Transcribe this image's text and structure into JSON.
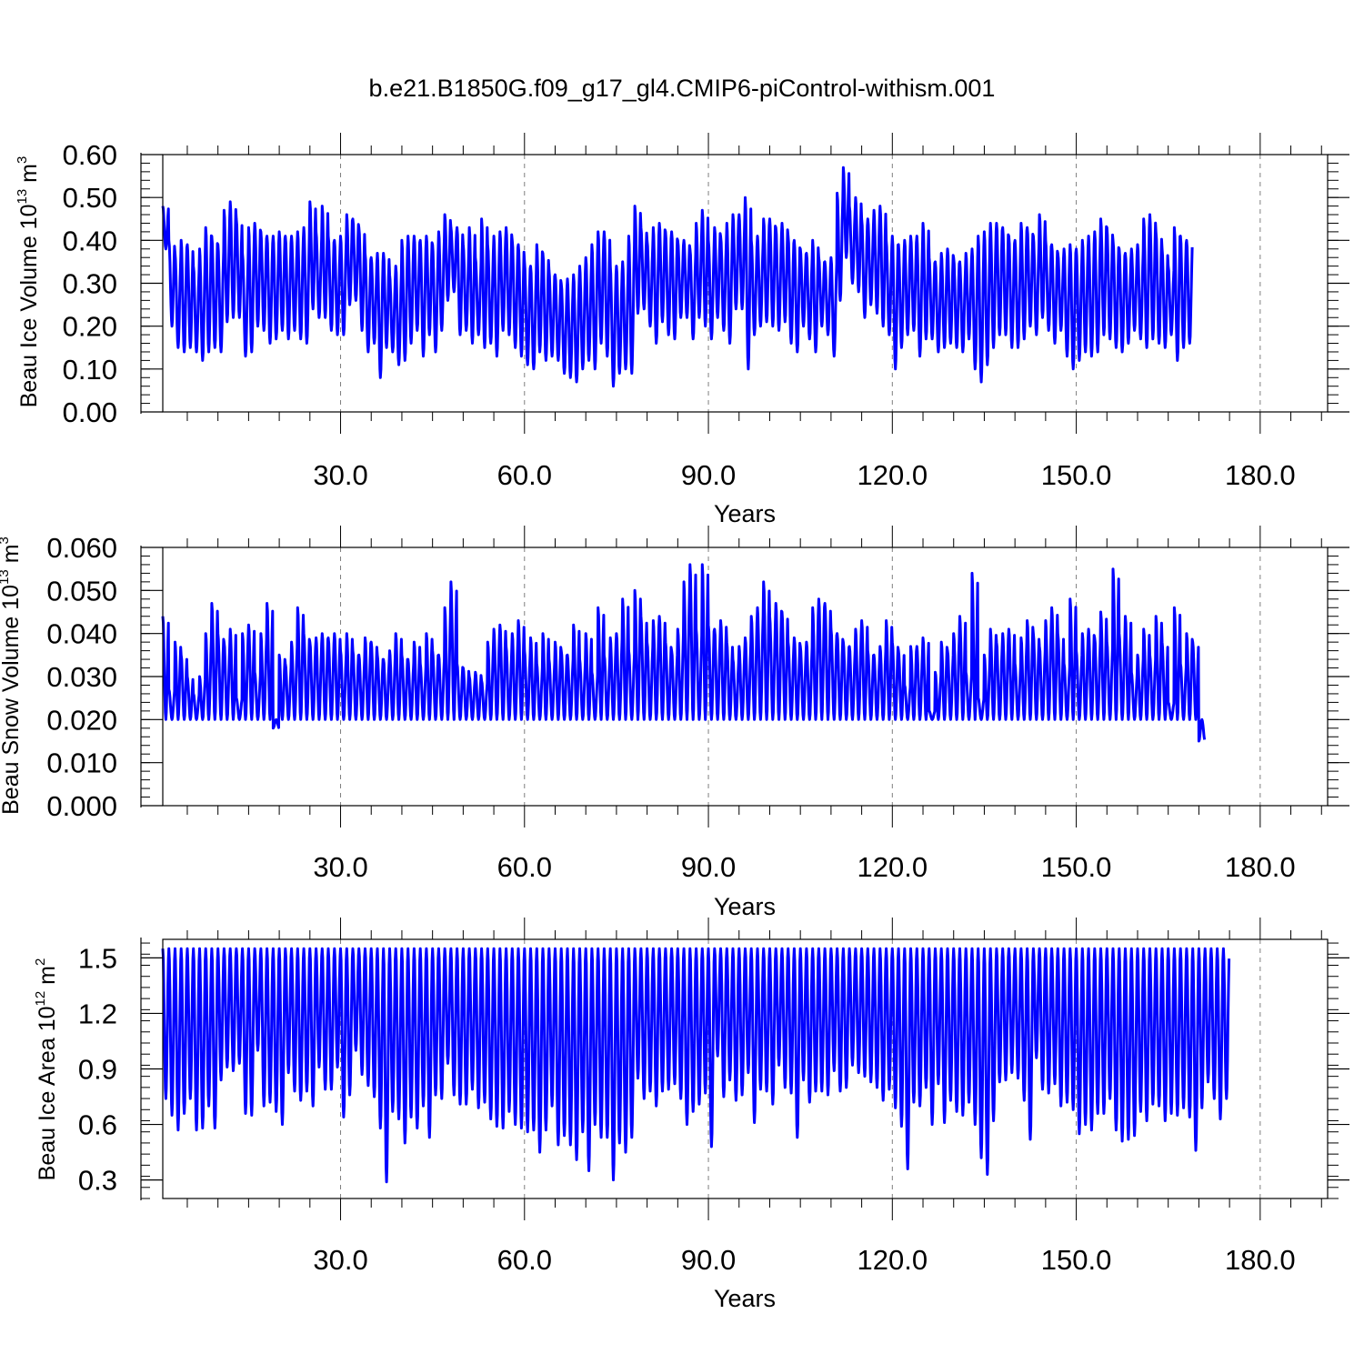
{
  "figure": {
    "title": "b.e21.B1850G.f09_g17_gl4.CMIP6-piControl-withism.001"
  },
  "colors": {
    "series": "#0000ff",
    "axis": "#000000",
    "grid": "#7f7f7f"
  },
  "chart_data": [
    {
      "type": "line",
      "ylabel": {
        "prefix": "Beau Ice Volume 10",
        "exp": "13",
        "unit": " m",
        "unit_exp": "3"
      },
      "xlabel": "Years",
      "xlim": [
        1,
        191
      ],
      "ylim": [
        0,
        0.6
      ],
      "yticks": [
        0,
        0.1,
        0.2,
        0.3,
        0.4,
        0.5,
        0.6
      ],
      "ytick_labels": [
        "0.00",
        "0.10",
        "0.20",
        "0.30",
        "0.40",
        "0.50",
        "0.60"
      ],
      "xticks": [
        30,
        60,
        90,
        120,
        150,
        180
      ],
      "xtick_labels": [
        "30.0",
        "60.0",
        "90.0",
        "120.0",
        "150.0",
        "180.0"
      ],
      "grid": "vertical dashed at major x ticks",
      "series": [
        {
          "annual_max": [
            0.48,
            0.4,
            0.37,
            0.4,
            0.39,
            0.34,
            0.38,
            0.43,
            0.41,
            0.39,
            0.47,
            0.49,
            0.45,
            0.37,
            0.43,
            0.44,
            0.42,
            0.41,
            0.41,
            0.42,
            0.41,
            0.41,
            0.42,
            0.43,
            0.49,
            0.42,
            0.48,
            0.41,
            0.4,
            0.41,
            0.46,
            0.45,
            0.43,
            0.37,
            0.36,
            0.37,
            0.37,
            0.32,
            0.34,
            0.4,
            0.41,
            0.41,
            0.4,
            0.41,
            0.39,
            0.42,
            0.46,
            0.43,
            0.43,
            0.39,
            0.43,
            0.36,
            0.45,
            0.39,
            0.41,
            0.42,
            0.43,
            0.4,
            0.39,
            0.35,
            0.34,
            0.39,
            0.37,
            0.33,
            0.32,
            0.3,
            0.31,
            0.32,
            0.34,
            0.36,
            0.39,
            0.42,
            0.42,
            0.34,
            0.34,
            0.35,
            0.41,
            0.48,
            0.43,
            0.4,
            0.43,
            0.44,
            0.42,
            0.42,
            0.4,
            0.4,
            0.38,
            0.44,
            0.47,
            0.4,
            0.43,
            0.41,
            0.44,
            0.46,
            0.46,
            0.5,
            0.4,
            0.41,
            0.45,
            0.45,
            0.43,
            0.44,
            0.41,
            0.4,
            0.38,
            0.37,
            0.4,
            0.36,
            0.35,
            0.36,
            0.51,
            0.57,
            0.48,
            0.5,
            0.45,
            0.45,
            0.47,
            0.48,
            0.4,
            0.41,
            0.39,
            0.4,
            0.41,
            0.41,
            0.44,
            0.36,
            0.35,
            0.37,
            0.38,
            0.36,
            0.35,
            0.37,
            0.38,
            0.41,
            0.42,
            0.44,
            0.44,
            0.43,
            0.41,
            0.4,
            0.44,
            0.43,
            0.41,
            0.46,
            0.4,
            0.39,
            0.37,
            0.38,
            0.39,
            0.38,
            0.4,
            0.41,
            0.42,
            0.45,
            0.43,
            0.4,
            0.38,
            0.37,
            0.38,
            0.39,
            0.45,
            0.46,
            0.42,
            0.38,
            0.34,
            0.43,
            0.41,
            0.4
          ],
          "annual_min": [
            0.38,
            0.2,
            0.15,
            0.14,
            0.15,
            0.14,
            0.12,
            0.14,
            0.15,
            0.14,
            0.21,
            0.22,
            0.22,
            0.13,
            0.14,
            0.2,
            0.19,
            0.16,
            0.17,
            0.19,
            0.17,
            0.19,
            0.17,
            0.16,
            0.24,
            0.22,
            0.22,
            0.19,
            0.18,
            0.18,
            0.25,
            0.26,
            0.19,
            0.14,
            0.16,
            0.08,
            0.15,
            0.14,
            0.11,
            0.12,
            0.16,
            0.19,
            0.13,
            0.18,
            0.14,
            0.19,
            0.26,
            0.28,
            0.18,
            0.19,
            0.16,
            0.18,
            0.15,
            0.16,
            0.13,
            0.19,
            0.18,
            0.15,
            0.13,
            0.11,
            0.1,
            0.14,
            0.12,
            0.13,
            0.12,
            0.09,
            0.08,
            0.07,
            0.1,
            0.12,
            0.1,
            0.16,
            0.13,
            0.06,
            0.09,
            0.1,
            0.09,
            0.23,
            0.24,
            0.2,
            0.16,
            0.21,
            0.18,
            0.17,
            0.22,
            0.22,
            0.17,
            0.22,
            0.2,
            0.17,
            0.22,
            0.19,
            0.16,
            0.24,
            0.24,
            0.1,
            0.18,
            0.2,
            0.21,
            0.2,
            0.19,
            0.21,
            0.16,
            0.14,
            0.2,
            0.17,
            0.14,
            0.2,
            0.18,
            0.13,
            0.26,
            0.36,
            0.3,
            0.28,
            0.22,
            0.25,
            0.23,
            0.2,
            0.18,
            0.1,
            0.15,
            0.18,
            0.19,
            0.13,
            0.17,
            0.17,
            0.14,
            0.15,
            0.16,
            0.15,
            0.14,
            0.17,
            0.1,
            0.07,
            0.11,
            0.15,
            0.18,
            0.18,
            0.15,
            0.15,
            0.17,
            0.2,
            0.18,
            0.22,
            0.19,
            0.16,
            0.19,
            0.13,
            0.1,
            0.12,
            0.14,
            0.13,
            0.14,
            0.18,
            0.17,
            0.15,
            0.14,
            0.16,
            0.19,
            0.17,
            0.15,
            0.17,
            0.16,
            0.15,
            0.18,
            0.12,
            0.15,
            0.16
          ]
        }
      ]
    },
    {
      "type": "line",
      "ylabel": {
        "prefix": "Beau Snow Volume 10",
        "exp": "13",
        "unit": " m",
        "unit_exp": "3"
      },
      "xlabel": "Years",
      "xlim": [
        1,
        191
      ],
      "ylim": [
        0,
        0.06
      ],
      "yticks": [
        0,
        0.01,
        0.02,
        0.03,
        0.04,
        0.05,
        0.06
      ],
      "ytick_labels": [
        "0.000",
        "0.010",
        "0.020",
        "0.030",
        "0.040",
        "0.050",
        "0.060"
      ],
      "xticks": [
        30,
        60,
        90,
        120,
        150,
        180
      ],
      "xtick_labels": [
        "30.0",
        "60.0",
        "90.0",
        "120.0",
        "150.0",
        "180.0"
      ],
      "grid": "vertical dashed at major x ticks",
      "series": [
        {
          "annual_max": [
            0.044,
            0.027,
            0.038,
            0.035,
            0.03,
            0.026,
            0.03,
            0.04,
            0.047,
            0.04,
            0.038,
            0.041,
            0.025,
            0.04,
            0.042,
            0.031,
            0.04,
            0.047,
            0.018,
            0.035,
            0.033,
            0.038,
            0.046,
            0.04,
            0.038,
            0.039,
            0.04,
            0.039,
            0.04,
            0.036,
            0.04,
            0.036,
            0.035,
            0.039,
            0.038,
            0.035,
            0.034,
            0.036,
            0.04,
            0.035,
            0.034,
            0.038,
            0.033,
            0.04,
            0.036,
            0.035,
            0.046,
            0.052,
            0.033,
            0.032,
            0.03,
            0.031,
            0.029,
            0.038,
            0.041,
            0.042,
            0.037,
            0.04,
            0.043,
            0.036,
            0.039,
            0.033,
            0.04,
            0.034,
            0.038,
            0.036,
            0.035,
            0.042,
            0.034,
            0.04,
            0.031,
            0.046,
            0.035,
            0.039,
            0.04,
            0.048,
            0.036,
            0.05,
            0.044,
            0.038,
            0.043,
            0.044,
            0.038,
            0.036,
            0.041,
            0.052,
            0.056,
            0.041,
            0.056,
            0.042,
            0.041,
            0.043,
            0.038,
            0.034,
            0.037,
            0.039,
            0.044,
            0.046,
            0.052,
            0.044,
            0.047,
            0.045,
            0.038,
            0.039,
            0.037,
            0.038,
            0.046,
            0.048,
            0.047,
            0.041,
            0.04,
            0.038,
            0.037,
            0.041,
            0.043,
            0.036,
            0.035,
            0.037,
            0.043,
            0.038,
            0.036,
            0.028,
            0.037,
            0.037,
            0.039,
            0.022,
            0.031,
            0.038,
            0.036,
            0.04,
            0.044,
            0.031,
            0.054,
            0.025,
            0.035,
            0.041,
            0.038,
            0.04,
            0.041,
            0.033,
            0.039,
            0.043,
            0.04,
            0.037,
            0.043,
            0.046,
            0.04,
            0.033,
            0.048,
            0.036,
            0.04,
            0.041,
            0.039,
            0.045,
            0.038,
            0.055,
            0.04,
            0.044,
            0.031,
            0.035,
            0.041,
            0.035,
            0.044,
            0.038,
            0.024,
            0.046,
            0.033,
            0.04,
            0.038,
            0.015
          ],
          "annual_min": [
            0.02
          ]
        }
      ]
    },
    {
      "type": "line",
      "ylabel": {
        "prefix": "Beau Ice Area 10",
        "exp": "12",
        "unit": " m",
        "unit_exp": "2"
      },
      "xlabel": "Years",
      "xlim": [
        1,
        191
      ],
      "ylim": [
        0.2,
        1.6
      ],
      "yticks": [
        0.3,
        0.6,
        0.9,
        1.2,
        1.5
      ],
      "ytick_labels": [
        "0.3",
        "0.6",
        "0.9",
        "1.2",
        "1.5"
      ],
      "xticks": [
        30,
        60,
        90,
        120,
        150,
        180
      ],
      "xtick_labels": [
        "30.0",
        "60.0",
        "90.0",
        "120.0",
        "150.0",
        "180.0"
      ],
      "grid": "vertical dashed at major x ticks",
      "series": [
        {
          "annual_max": [
            1.55
          ],
          "annual_min": [
            0.74,
            0.65,
            0.57,
            0.66,
            0.74,
            0.57,
            0.58,
            0.7,
            0.58,
            0.84,
            0.91,
            0.89,
            0.93,
            0.66,
            0.65,
            1.0,
            0.7,
            0.72,
            0.67,
            0.6,
            0.88,
            0.78,
            0.73,
            0.78,
            0.7,
            0.91,
            0.79,
            0.79,
            0.91,
            0.64,
            0.76,
            1.0,
            0.87,
            0.81,
            0.75,
            0.58,
            0.29,
            0.67,
            0.63,
            0.5,
            0.64,
            0.58,
            0.7,
            0.53,
            0.76,
            0.74,
            0.93,
            0.76,
            0.71,
            0.71,
            0.79,
            0.69,
            0.72,
            0.63,
            0.59,
            0.58,
            0.67,
            0.6,
            0.58,
            0.56,
            0.57,
            0.45,
            0.57,
            0.7,
            0.49,
            0.54,
            0.49,
            0.41,
            0.56,
            0.35,
            0.6,
            0.53,
            0.53,
            0.3,
            0.5,
            0.45,
            0.53,
            0.85,
            0.74,
            0.78,
            0.7,
            0.78,
            0.79,
            0.82,
            0.74,
            0.6,
            0.67,
            0.71,
            0.77,
            0.48,
            0.97,
            0.75,
            0.84,
            0.73,
            0.76,
            0.88,
            0.61,
            0.79,
            0.78,
            0.71,
            0.92,
            0.8,
            0.77,
            0.53,
            0.84,
            0.72,
            0.78,
            0.78,
            0.76,
            0.89,
            0.78,
            0.8,
            0.92,
            0.88,
            0.86,
            0.83,
            0.8,
            0.73,
            0.79,
            0.69,
            0.59,
            0.36,
            0.72,
            0.7,
            0.8,
            0.6,
            0.82,
            0.61,
            0.73,
            0.67,
            0.65,
            0.72,
            0.6,
            0.42,
            0.33,
            0.62,
            0.83,
            0.84,
            0.88,
            0.85,
            0.73,
            0.52,
            0.96,
            0.79,
            0.77,
            0.82,
            0.7,
            0.72,
            0.68,
            0.55,
            0.6,
            0.57,
            0.66,
            0.66,
            0.74,
            0.57,
            0.51,
            0.52,
            0.54,
            0.67,
            0.62,
            0.71,
            0.7,
            0.62,
            0.66,
            0.65,
            0.69,
            0.64,
            0.46,
            0.69,
            0.83,
            0.74,
            0.63,
            0.74
          ]
        }
      ]
    }
  ]
}
